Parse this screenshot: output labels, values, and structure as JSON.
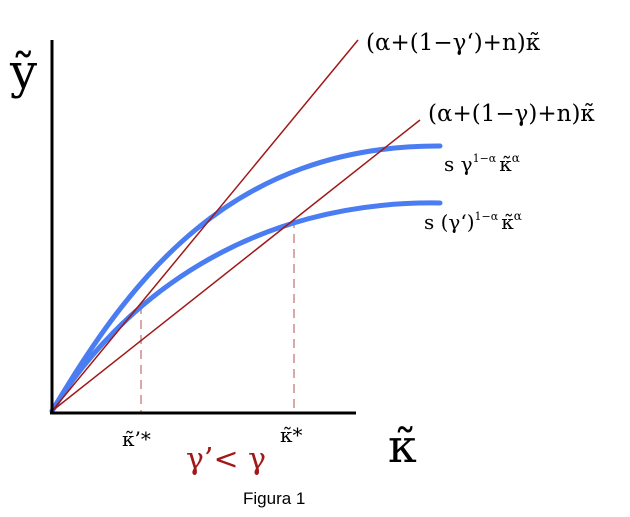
{
  "axes": {
    "y_label": "ỹ",
    "x_label": "κ̃"
  },
  "lines": {
    "steep_label": "(α+(1−γ‘)+n)κ̃",
    "shallow_label": "(α+(1−γ)+n)κ̃"
  },
  "curves": {
    "upper_label": {
      "base": "s γ",
      "exp": "1−α",
      "tail": "κ̃",
      "tail_exp": "α"
    },
    "lower_label": {
      "base": "s (γ‘)",
      "exp": "1−α",
      "tail": "κ̃",
      "tail_exp": "α"
    }
  },
  "ticks": {
    "k_prime_star": "κ̃’*",
    "k_star": "κ̃*"
  },
  "condition": "γ’< γ",
  "caption": "Figura 1",
  "colors": {
    "curve": "#4a7cf2",
    "line": "#a01818",
    "dash": "#d9a8a8",
    "condition": "#a01818",
    "axis": "#000000"
  }
}
